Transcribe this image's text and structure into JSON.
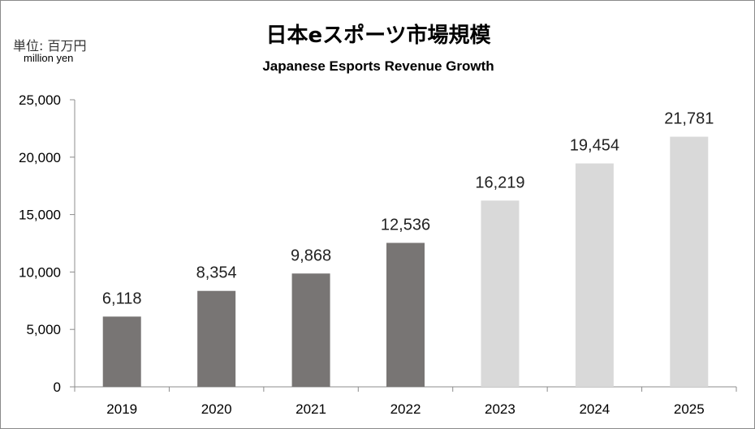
{
  "chart_data": {
    "type": "bar",
    "title": "日本eスポーツ市場規模",
    "subtitle": "Japanese Esports Revenue Growth",
    "unit_label": "単位: 百万円",
    "unit_label_en": "million yen",
    "xlabel": "",
    "ylabel": "",
    "categories": [
      "2019",
      "2020",
      "2021",
      "2022",
      "2023",
      "2024",
      "2025"
    ],
    "values": [
      6118,
      8354,
      9868,
      12536,
      16219,
      19454,
      21781
    ],
    "data_labels": [
      "6,118",
      "8,354",
      "9,868",
      "12,536",
      "16,219",
      "19,454",
      "21,781"
    ],
    "ylim": [
      0,
      25000
    ],
    "yticks": [
      0,
      5000,
      10000,
      15000,
      20000,
      25000
    ],
    "ytick_labels": [
      "0",
      "5,000",
      "10,000",
      "15,000",
      "20,000",
      "25,000"
    ],
    "grid": false,
    "legend": "none",
    "colors": {
      "actual": "#787574",
      "forecast": "#d9d9d9"
    },
    "bar_colors": [
      "actual",
      "actual",
      "actual",
      "actual",
      "forecast",
      "forecast",
      "forecast"
    ]
  }
}
